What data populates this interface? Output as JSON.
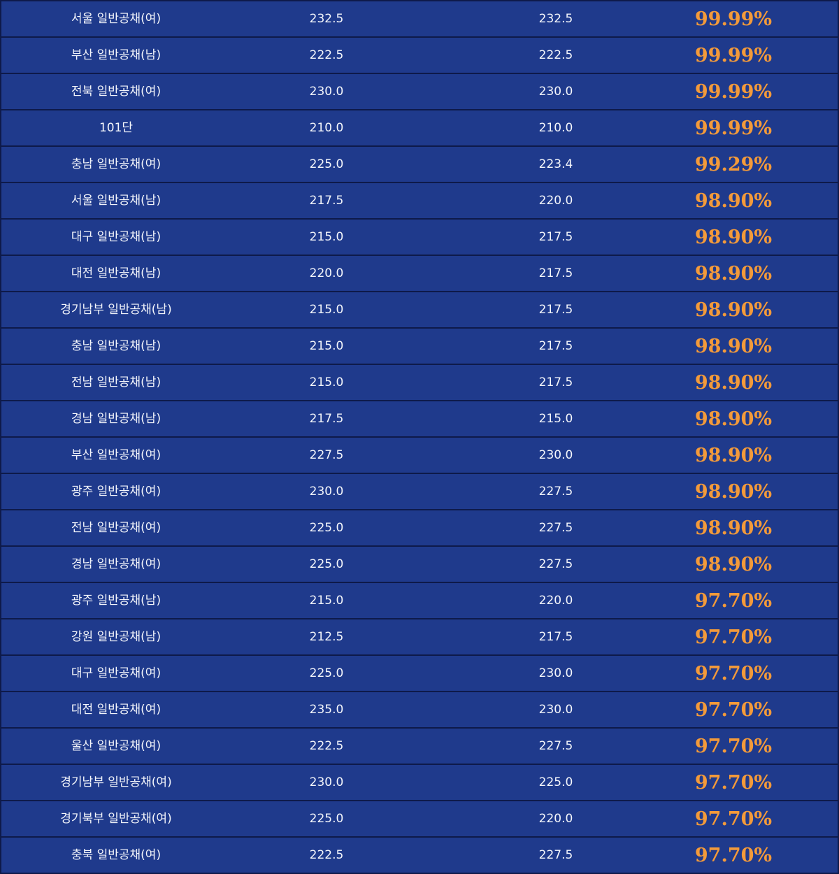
{
  "rows": [
    {
      "name": "서울 일반공채(여)",
      "v1": "232.5",
      "v2": "232.5",
      "rate": "99.99%"
    },
    {
      "name": "부산 일반공채(남)",
      "v1": "222.5",
      "v2": "222.5",
      "rate": "99.99%"
    },
    {
      "name": "전북 일반공채(여)",
      "v1": "230.0",
      "v2": "230.0",
      "rate": "99.99%"
    },
    {
      "name": "101단",
      "v1": "210.0",
      "v2": "210.0",
      "rate": "99.99%"
    },
    {
      "name": "충남 일반공채(여)",
      "v1": "225.0",
      "v2": "223.4",
      "rate": "99.29%"
    },
    {
      "name": "서울 일반공채(남)",
      "v1": "217.5",
      "v2": "220.0",
      "rate": "98.90%"
    },
    {
      "name": "대구 일반공채(남)",
      "v1": "215.0",
      "v2": "217.5",
      "rate": "98.90%"
    },
    {
      "name": "대전 일반공채(남)",
      "v1": "220.0",
      "v2": "217.5",
      "rate": "98.90%"
    },
    {
      "name": "경기남부 일반공채(남)",
      "v1": "215.0",
      "v2": "217.5",
      "rate": "98.90%"
    },
    {
      "name": "충남 일반공채(남)",
      "v1": "215.0",
      "v2": "217.5",
      "rate": "98.90%"
    },
    {
      "name": "전남 일반공채(남)",
      "v1": "215.0",
      "v2": "217.5",
      "rate": "98.90%"
    },
    {
      "name": "경남 일반공채(남)",
      "v1": "217.5",
      "v2": "215.0",
      "rate": "98.90%"
    },
    {
      "name": "부산 일반공채(여)",
      "v1": "227.5",
      "v2": "230.0",
      "rate": "98.90%"
    },
    {
      "name": "광주 일반공채(여)",
      "v1": "230.0",
      "v2": "227.5",
      "rate": "98.90%"
    },
    {
      "name": "전남 일반공채(여)",
      "v1": "225.0",
      "v2": "227.5",
      "rate": "98.90%"
    },
    {
      "name": "경남 일반공채(여)",
      "v1": "225.0",
      "v2": "227.5",
      "rate": "98.90%"
    },
    {
      "name": "광주 일반공채(남)",
      "v1": "215.0",
      "v2": "220.0",
      "rate": "97.70%"
    },
    {
      "name": "강원 일반공채(남)",
      "v1": "212.5",
      "v2": "217.5",
      "rate": "97.70%"
    },
    {
      "name": "대구 일반공채(여)",
      "v1": "225.0",
      "v2": "230.0",
      "rate": "97.70%"
    },
    {
      "name": "대전 일반공채(여)",
      "v1": "235.0",
      "v2": "230.0",
      "rate": "97.70%"
    },
    {
      "name": "울산 일반공채(여)",
      "v1": "222.5",
      "v2": "227.5",
      "rate": "97.70%"
    },
    {
      "name": "경기남부 일반공채(여)",
      "v1": "230.0",
      "v2": "225.0",
      "rate": "97.70%"
    },
    {
      "name": "경기북부 일반공채(여)",
      "v1": "225.0",
      "v2": "220.0",
      "rate": "97.70%"
    },
    {
      "name": "충북 일반공채(여)",
      "v1": "222.5",
      "v2": "227.5",
      "rate": "97.70%"
    }
  ],
  "colors": {
    "row_background": "#1f3a8c",
    "border": "#0e1a4a",
    "text": "#f4f6fb",
    "rate_accent": "#f39a3a"
  }
}
